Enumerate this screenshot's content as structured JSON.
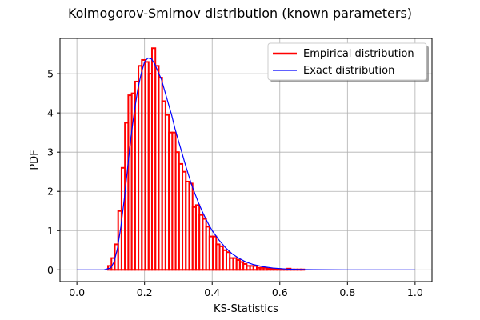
{
  "chart_data": {
    "type": "histogram+line",
    "title": "Kolmogorov-Smirnov distribution (known parameters)",
    "xlabel": "KS-Statistics",
    "ylabel": "PDF",
    "xlim": [
      -0.05,
      1.05
    ],
    "ylim": [
      -0.3,
      5.9
    ],
    "xticks": [
      0.0,
      0.2,
      0.4,
      0.6,
      0.8,
      1.0
    ],
    "xtick_labels": [
      "0.0",
      "0.2",
      "0.4",
      "0.6",
      "0.8",
      "1.0"
    ],
    "yticks": [
      0,
      1,
      2,
      3,
      4,
      5
    ],
    "ytick_labels": [
      "0",
      "1",
      "2",
      "3",
      "4",
      "5"
    ],
    "grid": true,
    "legend_position": "top-right",
    "series": [
      {
        "name": "Empirical distribution",
        "kind": "histogram",
        "color": "#ff0000",
        "bin_edges": [
          0.092,
          0.102,
          0.112,
          0.122,
          0.132,
          0.142,
          0.152,
          0.162,
          0.172,
          0.182,
          0.192,
          0.202,
          0.212,
          0.222,
          0.232,
          0.242,
          0.252,
          0.262,
          0.272,
          0.282,
          0.292,
          0.302,
          0.312,
          0.322,
          0.332,
          0.342,
          0.352,
          0.362,
          0.372,
          0.382,
          0.392,
          0.402,
          0.412,
          0.422,
          0.432,
          0.442,
          0.452,
          0.462,
          0.472,
          0.482,
          0.492,
          0.502,
          0.512,
          0.522,
          0.532,
          0.542,
          0.552,
          0.562,
          0.572,
          0.582,
          0.592,
          0.602,
          0.612,
          0.622,
          0.632,
          0.642,
          0.652,
          0.662,
          0.672
        ],
        "values": [
          0.1,
          0.3,
          0.65,
          1.5,
          2.6,
          3.75,
          4.45,
          4.5,
          4.8,
          5.2,
          5.35,
          5.3,
          5.0,
          5.65,
          5.2,
          4.9,
          4.3,
          3.95,
          3.5,
          3.5,
          3.0,
          2.7,
          2.5,
          2.25,
          2.2,
          1.6,
          1.65,
          1.4,
          1.3,
          1.1,
          0.85,
          0.85,
          0.65,
          0.6,
          0.5,
          0.45,
          0.3,
          0.3,
          0.25,
          0.2,
          0.15,
          0.1,
          0.1,
          0.1,
          0.05,
          0.05,
          0.05,
          0.03,
          0.03,
          0.02,
          0.02,
          0.01,
          0.01,
          0.03,
          0.01,
          0.01,
          0.01,
          0.01
        ]
      },
      {
        "name": "Exact distribution",
        "kind": "line",
        "color": "#0000ff",
        "x": [
          0.0,
          0.08,
          0.1,
          0.11,
          0.12,
          0.13,
          0.14,
          0.15,
          0.16,
          0.17,
          0.18,
          0.19,
          0.2,
          0.21,
          0.22,
          0.23,
          0.24,
          0.25,
          0.26,
          0.27,
          0.28,
          0.29,
          0.3,
          0.31,
          0.32,
          0.33,
          0.34,
          0.35,
          0.36,
          0.37,
          0.38,
          0.39,
          0.4,
          0.42,
          0.44,
          0.46,
          0.48,
          0.5,
          0.52,
          0.55,
          0.58,
          0.62,
          0.66,
          0.7,
          0.8,
          1.0
        ],
        "y": [
          0.0,
          0.0,
          0.05,
          0.2,
          0.55,
          1.1,
          1.8,
          2.6,
          3.4,
          4.05,
          4.6,
          5.0,
          5.3,
          5.4,
          5.38,
          5.25,
          5.05,
          4.85,
          4.55,
          4.25,
          3.95,
          3.6,
          3.3,
          3.0,
          2.7,
          2.42,
          2.15,
          1.92,
          1.7,
          1.5,
          1.32,
          1.15,
          1.0,
          0.76,
          0.56,
          0.4,
          0.29,
          0.2,
          0.14,
          0.08,
          0.045,
          0.02,
          0.008,
          0.003,
          0.0,
          0.0
        ]
      }
    ]
  }
}
